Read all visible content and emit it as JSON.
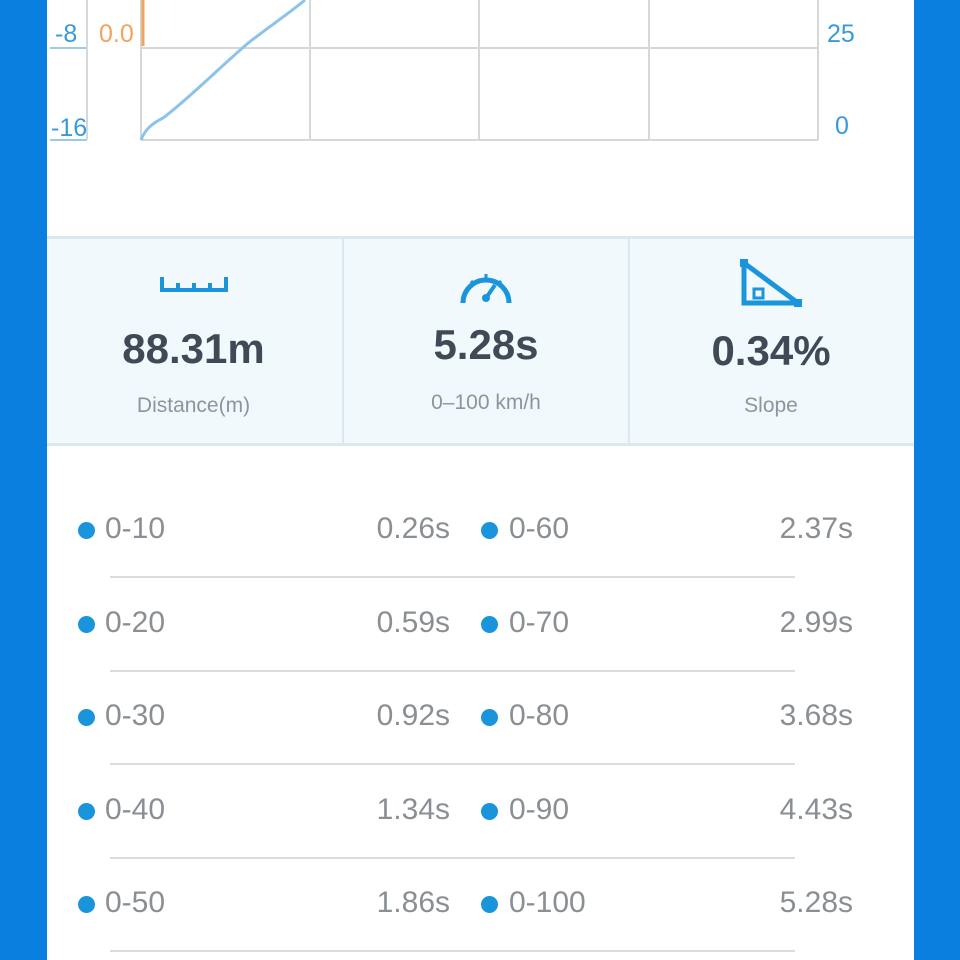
{
  "chart": {
    "left_axis_blue": [
      "-8",
      "-16"
    ],
    "left_axis_orange": [
      "0.0"
    ],
    "right_axis": [
      "25",
      "0"
    ]
  },
  "stats": {
    "distance": {
      "icon": "ruler-icon",
      "value": "88.31m",
      "label": "Distance(m)"
    },
    "acceleration": {
      "icon": "speedometer-icon",
      "value": "5.28s",
      "label": "0–100 km/h"
    },
    "slope": {
      "icon": "slope-icon",
      "value": "0.34%",
      "label": "Slope"
    }
  },
  "rows": [
    {
      "left_label": "0-10",
      "left_value": "0.26s",
      "right_label": "0-60",
      "right_value": "2.37s"
    },
    {
      "left_label": "0-20",
      "left_value": "0.59s",
      "right_label": "0-70",
      "right_value": "2.99s"
    },
    {
      "left_label": "0-30",
      "left_value": "0.92s",
      "right_label": "0-80",
      "right_value": "3.68s"
    },
    {
      "left_label": "0-40",
      "left_value": "1.34s",
      "right_label": "0-90",
      "right_value": "4.43s"
    },
    {
      "left_label": "0-50",
      "left_value": "1.86s",
      "right_label": "0-100",
      "right_value": "5.28s"
    }
  ],
  "colors": {
    "accent": "#1a95dc",
    "frame": "#0a7fe0",
    "orange": "#f0a45c"
  }
}
